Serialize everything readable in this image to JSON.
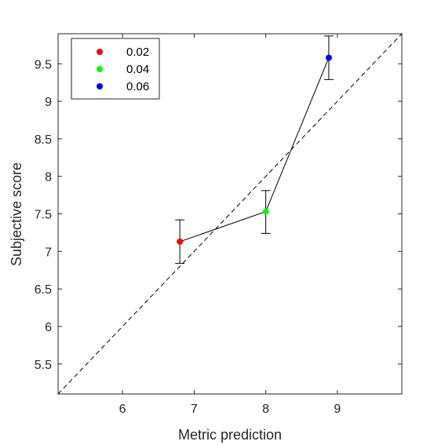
{
  "chart_data": {
    "type": "scatter",
    "title": "",
    "xlabel": "Metric prediction",
    "ylabel": "Subjective score",
    "xlim": [
      5.1,
      9.9
    ],
    "ylim": [
      5.1,
      9.9
    ],
    "xticks": [
      6,
      7,
      8,
      9
    ],
    "yticks": [
      5.5,
      6,
      6.5,
      7,
      7.5,
      8,
      8.5,
      9,
      9.5
    ],
    "grid": false,
    "legend": "top-left",
    "identity_line": {
      "style": "dashed",
      "color": "#000000"
    },
    "connecting_line": {
      "color": "#000000"
    },
    "series": [
      {
        "name": "0.02",
        "color": "#ff0000",
        "x": 6.8,
        "y": 7.13,
        "err_low": 6.84,
        "err_high": 7.42
      },
      {
        "name": "0.04",
        "color": "#00ff00",
        "x": 8.0,
        "y": 7.53,
        "err_low": 7.24,
        "err_high": 7.81
      },
      {
        "name": "0.06",
        "color": "#0000ff",
        "x": 8.88,
        "y": 9.58,
        "err_low": 9.29,
        "err_high": 9.87
      }
    ]
  }
}
